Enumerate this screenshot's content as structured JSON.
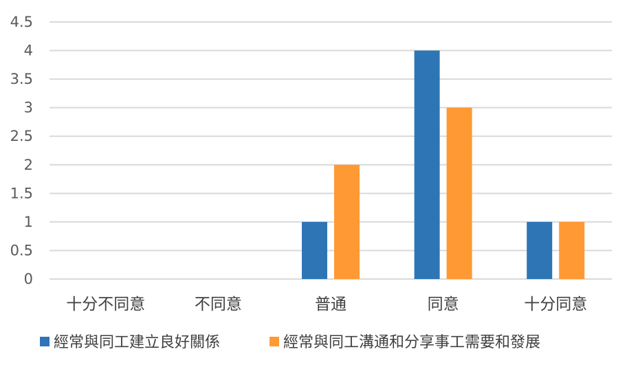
{
  "chart_data": {
    "type": "bar",
    "categories": [
      "十分不同意",
      "不同意",
      "普通",
      "同意",
      "十分同意"
    ],
    "series": [
      {
        "name": "經常與同工建立良好關係",
        "values": [
          0,
          0,
          1,
          4,
          1
        ],
        "color": "#2e75b6"
      },
      {
        "name": "經常與同工溝通和分享事工需要和發展",
        "values": [
          0,
          0,
          2,
          3,
          1
        ],
        "color": "#ff9933"
      }
    ],
    "y_ticks": [
      "0",
      "0.5",
      "1",
      "1.5",
      "2",
      "2.5",
      "3",
      "3.5",
      "4",
      "4.5"
    ],
    "ylim": [
      0,
      4.5
    ],
    "grid": true,
    "legend_position": "bottom"
  }
}
